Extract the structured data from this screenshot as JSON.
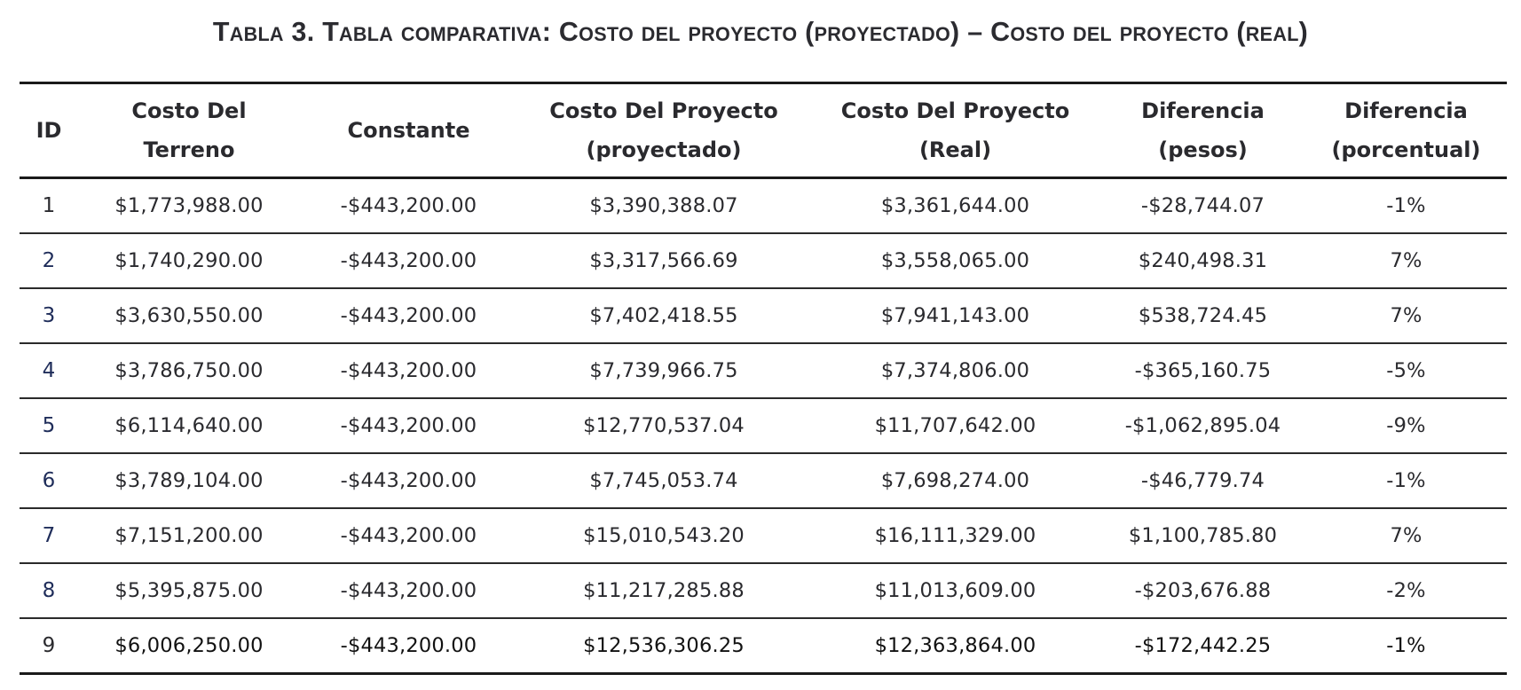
{
  "caption": "Tabla 3. Tabla comparativa: Costo del proyecto (proyectado) – Costo del proyecto (real)",
  "colors": {
    "text": "#2a2a2e",
    "id_blue": "#1f2d5a",
    "rules": "#1a1a1a"
  },
  "table": {
    "headers": [
      {
        "line1": "ID",
        "line2": ""
      },
      {
        "line1": "Costo Del",
        "line2": "Terreno"
      },
      {
        "line1": "Constante",
        "line2": ""
      },
      {
        "line1": "Costo Del Proyecto",
        "line2": "(proyectado)"
      },
      {
        "line1": "Costo Del Proyecto",
        "line2": "(Real)"
      },
      {
        "line1": "Diferencia",
        "line2": "(pesos)"
      },
      {
        "line1": "Diferencia",
        "line2": "(porcentual)"
      }
    ],
    "rows": [
      {
        "id": "1",
        "id_color": "#2a2a2e",
        "terreno": "$1,773,988.00",
        "constante": "-$443,200.00",
        "proyectado": "$3,390,388.07",
        "real": "$3,361,644.00",
        "dif_pesos": "-$28,744.07",
        "dif_pct": "-1%"
      },
      {
        "id": "2",
        "id_color": "#1f2d5a",
        "terreno": "$1,740,290.00",
        "constante": "-$443,200.00",
        "proyectado": "$3,317,566.69",
        "real": "$3,558,065.00",
        "dif_pesos": "$240,498.31",
        "dif_pct": "7%"
      },
      {
        "id": "3",
        "id_color": "#1f2d5a",
        "terreno": "$3,630,550.00",
        "constante": "-$443,200.00",
        "proyectado": "$7,402,418.55",
        "real": "$7,941,143.00",
        "dif_pesos": "$538,724.45",
        "dif_pct": "7%"
      },
      {
        "id": "4",
        "id_color": "#1f2d5a",
        "terreno": "$3,786,750.00",
        "constante": "-$443,200.00",
        "proyectado": "$7,739,966.75",
        "real": "$7,374,806.00",
        "dif_pesos": "-$365,160.75",
        "dif_pct": "-5%"
      },
      {
        "id": "5",
        "id_color": "#1f2d5a",
        "terreno": "$6,114,640.00",
        "constante": "-$443,200.00",
        "proyectado": "$12,770,537.04",
        "real": "$11,707,642.00",
        "dif_pesos": "-$1,062,895.04",
        "dif_pct": "-9%"
      },
      {
        "id": "6",
        "id_color": "#1f2d5a",
        "terreno": "$3,789,104.00",
        "constante": "-$443,200.00",
        "proyectado": "$7,745,053.74",
        "real": "$7,698,274.00",
        "dif_pesos": "-$46,779.74",
        "dif_pct": "-1%"
      },
      {
        "id": "7",
        "id_color": "#1f2d5a",
        "terreno": "$7,151,200.00",
        "constante": "-$443,200.00",
        "proyectado": "$15,010,543.20",
        "real": "$16,111,329.00",
        "dif_pesos": "$1,100,785.80",
        "dif_pct": "7%"
      },
      {
        "id": "8",
        "id_color": "#1f2d5a",
        "terreno": "$5,395,875.00",
        "constante": "-$443,200.00",
        "proyectado": "$11,217,285.88",
        "real": "$11,013,609.00",
        "dif_pesos": "-$203,676.88",
        "dif_pct": "-2%"
      },
      {
        "id": "9",
        "id_color": "#2a2a2e",
        "terreno": "$6,006,250.00",
        "constante": "-$443,200.00",
        "proyectado": "$12,536,306.25",
        "real": "$12,363,864.00",
        "dif_pesos": "-$172,442.25",
        "dif_pct": "-1%"
      }
    ]
  }
}
